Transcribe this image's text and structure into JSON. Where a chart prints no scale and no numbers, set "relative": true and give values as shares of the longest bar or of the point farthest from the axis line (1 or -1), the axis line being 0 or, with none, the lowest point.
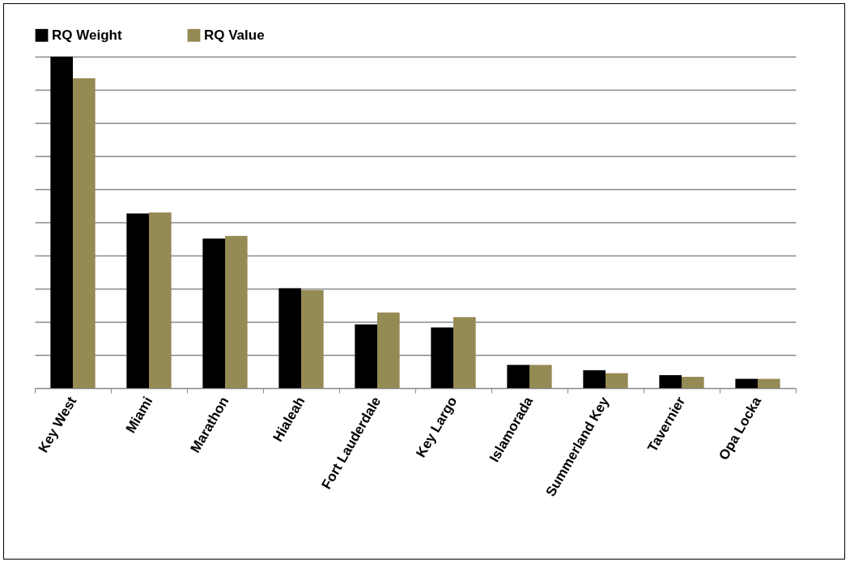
{
  "chart_data": {
    "type": "bar",
    "relative": true,
    "grid": "y",
    "legend": "top",
    "categories": [
      "Key West",
      "Miami",
      "Marathon",
      "Hialeah",
      "Fort Lauderdale",
      "Key Largo",
      "Islamorada",
      "Summerland Key",
      "Tavernier",
      "Opa Locka"
    ],
    "series": [
      {
        "name": "RQ Weight",
        "color": "#000000",
        "values": [
          1,
          0.527,
          0.451,
          0.301,
          0.192,
          0.183,
          0.07,
          0.054,
          0.039,
          0.028
        ]
      },
      {
        "name": "RQ Value",
        "color": "#948a54",
        "values": [
          0.935,
          0.53,
          0.459,
          0.296,
          0.228,
          0.214,
          0.07,
          0.045,
          0.034,
          0.028
        ]
      }
    ]
  }
}
